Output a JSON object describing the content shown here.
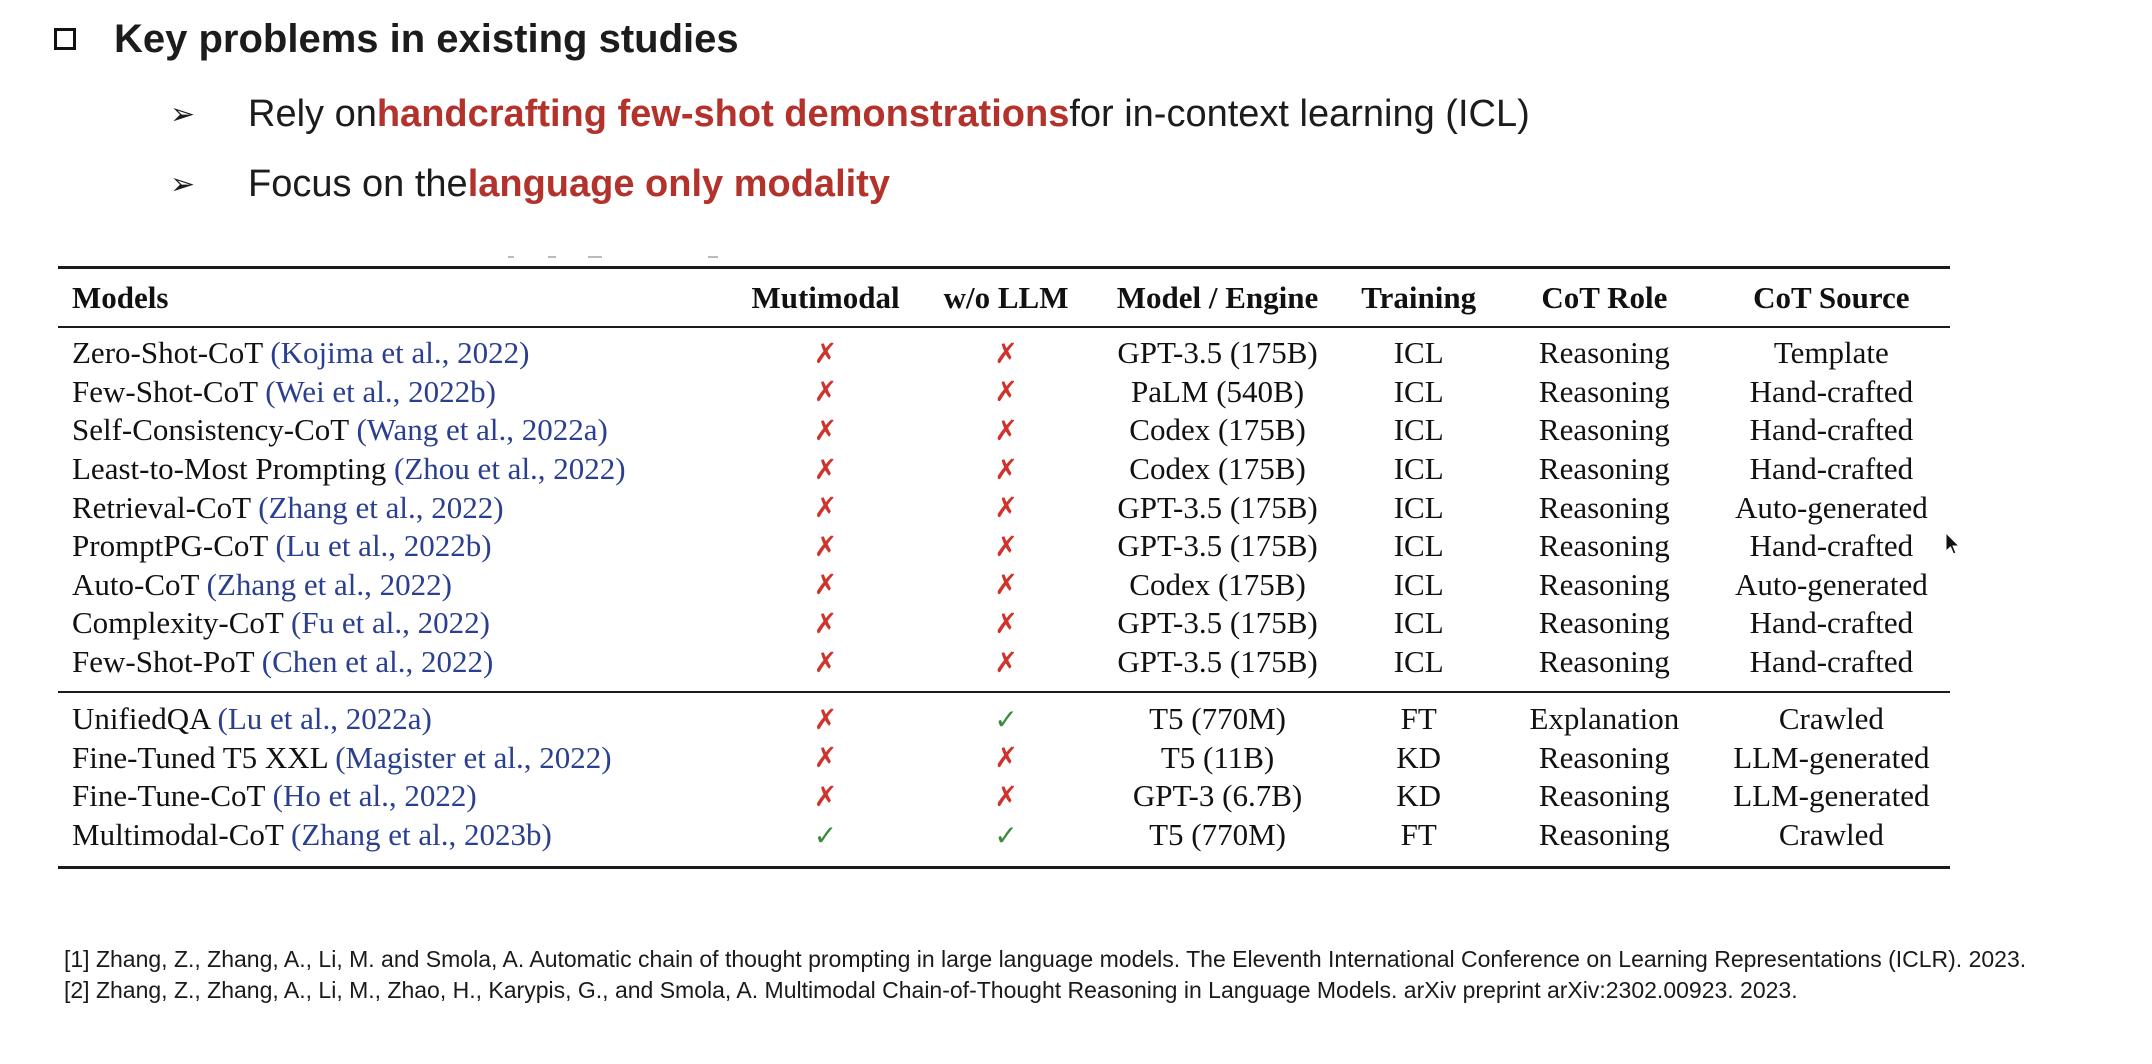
{
  "heading": "Key problems in existing studies",
  "bullets": [
    {
      "before": "Rely on ",
      "highlight": "handcrafting few-shot demonstrations",
      "after": " for in-context learning (ICL)"
    },
    {
      "before": "Focus on the ",
      "highlight": "language only modality",
      "after": ""
    }
  ],
  "table": {
    "headers": [
      "Models",
      "Mutimodal",
      "w/o LLM",
      "Model / Engine",
      "Training",
      "CoT Role",
      "CoT Source"
    ],
    "group1": [
      {
        "model": "Zero-Shot-CoT ",
        "cite": "(Kojima et al., 2022)",
        "multimodal": "✗",
        "wo_llm": "✗",
        "engine": "GPT-3.5 (175B)",
        "training": "ICL",
        "role": "Reasoning",
        "source": "Template"
      },
      {
        "model": "Few-Shot-CoT ",
        "cite": "(Wei et al., 2022b)",
        "multimodal": "✗",
        "wo_llm": "✗",
        "engine": "PaLM (540B)",
        "training": "ICL",
        "role": "Reasoning",
        "source": "Hand-crafted"
      },
      {
        "model": "Self-Consistency-CoT ",
        "cite": "(Wang et al., 2022a)",
        "multimodal": "✗",
        "wo_llm": "✗",
        "engine": "Codex (175B)",
        "training": "ICL",
        "role": "Reasoning",
        "source": "Hand-crafted"
      },
      {
        "model": "Least-to-Most Prompting ",
        "cite": "(Zhou et al., 2022)",
        "multimodal": "✗",
        "wo_llm": "✗",
        "engine": "Codex (175B)",
        "training": "ICL",
        "role": "Reasoning",
        "source": "Hand-crafted"
      },
      {
        "model": "Retrieval-CoT ",
        "cite": "(Zhang et al., 2022)",
        "multimodal": "✗",
        "wo_llm": "✗",
        "engine": "GPT-3.5 (175B)",
        "training": "ICL",
        "role": "Reasoning",
        "source": "Auto-generated"
      },
      {
        "model": "PromptPG-CoT ",
        "cite": "(Lu et al., 2022b)",
        "multimodal": "✗",
        "wo_llm": "✗",
        "engine": "GPT-3.5 (175B)",
        "training": "ICL",
        "role": "Reasoning",
        "source": "Hand-crafted"
      },
      {
        "model": "Auto-CoT ",
        "cite": "(Zhang et al., 2022)",
        "multimodal": "✗",
        "wo_llm": "✗",
        "engine": "Codex (175B)",
        "training": "ICL",
        "role": "Reasoning",
        "source": "Auto-generated"
      },
      {
        "model": "Complexity-CoT ",
        "cite": "(Fu et al., 2022)",
        "multimodal": "✗",
        "wo_llm": "✗",
        "engine": "GPT-3.5 (175B)",
        "training": "ICL",
        "role": "Reasoning",
        "source": "Hand-crafted"
      },
      {
        "model": "Few-Shot-PoT ",
        "cite": "(Chen et al., 2022)",
        "multimodal": "✗",
        "wo_llm": "✗",
        "engine": "GPT-3.5 (175B)",
        "training": "ICL",
        "role": "Reasoning",
        "source": "Hand-crafted"
      }
    ],
    "group2": [
      {
        "model": "UnifiedQA ",
        "cite": "(Lu et al., 2022a)",
        "multimodal": "✗",
        "wo_llm": "✓",
        "engine": "T5 (770M)",
        "training": "FT",
        "role": "Explanation",
        "source": "Crawled"
      },
      {
        "model": "Fine-Tuned T5 XXL ",
        "cite": "(Magister et al., 2022)",
        "multimodal": "✗",
        "wo_llm": "✗",
        "engine": "T5 (11B)",
        "training": "KD",
        "role": "Reasoning",
        "source": "LLM-generated"
      },
      {
        "model": "Fine-Tune-CoT ",
        "cite": "(Ho et al., 2022)",
        "multimodal": "✗",
        "wo_llm": "✗",
        "engine": "GPT-3 (6.7B)",
        "training": "KD",
        "role": "Reasoning",
        "source": "LLM-generated"
      },
      {
        "model": "Multimodal-CoT ",
        "cite": "(Zhang et al., 2023b)",
        "multimodal": "✓",
        "wo_llm": "✓",
        "engine": "T5 (770M)",
        "training": "FT",
        "role": "Reasoning",
        "source": "Crawled"
      }
    ]
  },
  "references": [
    "[1] Zhang, Z., Zhang, A., Li, M. and Smola, A. Automatic chain of thought prompting in large language models. The Eleventh International Conference on Learning Representations (ICLR). 2023.",
    "[2] Zhang, Z., Zhang, A., Li, M., Zhao, H., Karypis, G., and Smola, A. Multimodal Chain-of-Thought Reasoning in Language Models. arXiv preprint arXiv:2302.00923. 2023."
  ],
  "colors": {
    "highlight": "#b3322c",
    "cite": "#2a3f8f",
    "cross": "#d0322c",
    "check": "#3c8a3c"
  },
  "icons": {
    "bullet": "checkbox-icon",
    "list_marker": "arrow-icon",
    "pointer": "cursor-icon"
  }
}
